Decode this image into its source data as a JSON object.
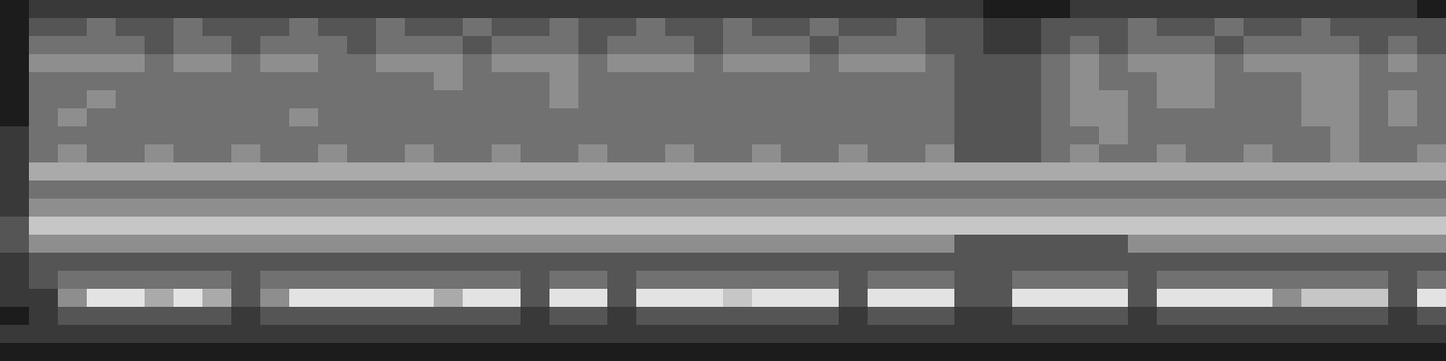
{
  "chart_data": {
    "type": "heatmap",
    "tick_labels": false,
    "zlim": [
      0,
      9
    ],
    "cells": [
      [
        1,
        2,
        2,
        2,
        2,
        2,
        2,
        2,
        2,
        2,
        2,
        2,
        2,
        2,
        2,
        2,
        2,
        2,
        2,
        2,
        2,
        2,
        2,
        2,
        2,
        2,
        2,
        2,
        2,
        2,
        2,
        2,
        2,
        2,
        1,
        1,
        1,
        2,
        2,
        2,
        2,
        2,
        2,
        2,
        2,
        2,
        2,
        2,
        2,
        1
      ],
      [
        1,
        3,
        3,
        4,
        3,
        3,
        4,
        3,
        3,
        3,
        4,
        3,
        3,
        4,
        3,
        3,
        4,
        3,
        3,
        4,
        3,
        3,
        4,
        3,
        3,
        4,
        3,
        3,
        4,
        3,
        3,
        4,
        3,
        3,
        2,
        2,
        3,
        3,
        3,
        4,
        3,
        3,
        4,
        3,
        3,
        4,
        3,
        3,
        3,
        3
      ],
      [
        1,
        4,
        4,
        4,
        4,
        3,
        4,
        4,
        3,
        4,
        4,
        4,
        3,
        4,
        4,
        4,
        3,
        4,
        4,
        4,
        3,
        4,
        4,
        4,
        3,
        4,
        4,
        4,
        3,
        4,
        4,
        4,
        3,
        3,
        2,
        2,
        3,
        4,
        3,
        4,
        4,
        4,
        3,
        4,
        4,
        4,
        4,
        3,
        4,
        3
      ],
      [
        1,
        5,
        5,
        5,
        5,
        4,
        5,
        5,
        4,
        5,
        5,
        4,
        4,
        5,
        5,
        5,
        4,
        5,
        5,
        5,
        4,
        5,
        5,
        5,
        4,
        5,
        5,
        5,
        4,
        5,
        5,
        5,
        4,
        3,
        3,
        3,
        4,
        5,
        4,
        5,
        5,
        5,
        4,
        5,
        5,
        5,
        5,
        4,
        5,
        4
      ],
      [
        1,
        4,
        4,
        4,
        4,
        4,
        4,
        4,
        4,
        4,
        4,
        4,
        4,
        4,
        4,
        5,
        4,
        4,
        4,
        5,
        4,
        4,
        4,
        4,
        4,
        4,
        4,
        4,
        4,
        4,
        4,
        4,
        4,
        3,
        3,
        3,
        4,
        5,
        4,
        4,
        5,
        5,
        4,
        4,
        4,
        5,
        5,
        4,
        4,
        4
      ],
      [
        1,
        4,
        4,
        5,
        4,
        4,
        4,
        4,
        4,
        4,
        4,
        4,
        4,
        4,
        4,
        4,
        4,
        4,
        4,
        5,
        4,
        4,
        4,
        4,
        4,
        4,
        4,
        4,
        4,
        4,
        4,
        4,
        4,
        3,
        3,
        3,
        4,
        5,
        5,
        4,
        5,
        5,
        4,
        4,
        4,
        5,
        5,
        4,
        5,
        4
      ],
      [
        1,
        4,
        5,
        4,
        4,
        4,
        4,
        4,
        4,
        4,
        5,
        4,
        4,
        4,
        4,
        4,
        4,
        4,
        4,
        4,
        4,
        4,
        4,
        4,
        4,
        4,
        4,
        4,
        4,
        4,
        4,
        4,
        4,
        3,
        3,
        3,
        4,
        5,
        5,
        4,
        4,
        4,
        4,
        4,
        4,
        5,
        5,
        4,
        5,
        4
      ],
      [
        2,
        4,
        4,
        4,
        4,
        4,
        4,
        4,
        4,
        4,
        4,
        4,
        4,
        4,
        4,
        4,
        4,
        4,
        4,
        4,
        4,
        4,
        4,
        4,
        4,
        4,
        4,
        4,
        4,
        4,
        4,
        4,
        4,
        3,
        3,
        3,
        4,
        4,
        5,
        4,
        4,
        4,
        4,
        4,
        4,
        4,
        5,
        4,
        4,
        4
      ],
      [
        2,
        4,
        5,
        4,
        4,
        5,
        4,
        4,
        5,
        4,
        4,
        5,
        4,
        4,
        5,
        4,
        4,
        5,
        4,
        4,
        5,
        4,
        4,
        5,
        4,
        4,
        5,
        4,
        4,
        5,
        4,
        4,
        5,
        3,
        3,
        3,
        4,
        5,
        4,
        4,
        5,
        4,
        4,
        5,
        4,
        4,
        5,
        4,
        4,
        5
      ],
      [
        2,
        6,
        6,
        6,
        6,
        6,
        6,
        6,
        6,
        6,
        6,
        6,
        6,
        6,
        6,
        6,
        6,
        6,
        6,
        6,
        6,
        6,
        6,
        6,
        6,
        6,
        6,
        6,
        6,
        6,
        6,
        6,
        6,
        6,
        6,
        6,
        6,
        6,
        6,
        6,
        6,
        6,
        6,
        6,
        6,
        6,
        6,
        6,
        6,
        6
      ],
      [
        2,
        4,
        4,
        4,
        4,
        4,
        4,
        4,
        4,
        4,
        4,
        4,
        4,
        4,
        4,
        4,
        4,
        4,
        4,
        4,
        4,
        4,
        4,
        4,
        4,
        4,
        4,
        4,
        4,
        4,
        4,
        4,
        4,
        4,
        4,
        4,
        4,
        4,
        4,
        4,
        4,
        4,
        4,
        4,
        4,
        4,
        4,
        4,
        4,
        4
      ],
      [
        2,
        5,
        5,
        5,
        5,
        5,
        5,
        5,
        5,
        5,
        5,
        5,
        5,
        5,
        5,
        5,
        5,
        5,
        5,
        5,
        5,
        5,
        5,
        5,
        5,
        5,
        5,
        5,
        5,
        5,
        5,
        5,
        5,
        5,
        5,
        5,
        5,
        5,
        5,
        5,
        5,
        5,
        5,
        5,
        5,
        5,
        5,
        5,
        5,
        5
      ],
      [
        3,
        7,
        7,
        7,
        7,
        7,
        7,
        7,
        7,
        7,
        7,
        7,
        7,
        7,
        7,
        7,
        7,
        7,
        7,
        7,
        7,
        7,
        7,
        7,
        7,
        7,
        7,
        7,
        7,
        7,
        7,
        7,
        7,
        7,
        7,
        7,
        7,
        7,
        7,
        7,
        7,
        7,
        7,
        7,
        7,
        7,
        7,
        7,
        7,
        7
      ],
      [
        3,
        5,
        5,
        5,
        5,
        5,
        5,
        5,
        5,
        5,
        5,
        5,
        5,
        5,
        5,
        5,
        5,
        5,
        5,
        5,
        5,
        5,
        5,
        5,
        5,
        5,
        5,
        5,
        5,
        5,
        5,
        5,
        5,
        3,
        3,
        3,
        3,
        3,
        3,
        5,
        5,
        5,
        5,
        5,
        5,
        5,
        5,
        5,
        5,
        5
      ],
      [
        2,
        3,
        3,
        3,
        3,
        3,
        3,
        3,
        3,
        3,
        3,
        3,
        3,
        3,
        3,
        3,
        3,
        3,
        3,
        3,
        3,
        3,
        3,
        3,
        3,
        3,
        3,
        3,
        3,
        3,
        3,
        3,
        3,
        3,
        3,
        3,
        3,
        3,
        3,
        3,
        3,
        3,
        3,
        3,
        3,
        3,
        3,
        3,
        3,
        3
      ],
      [
        2,
        3,
        4,
        4,
        4,
        4,
        4,
        4,
        3,
        4,
        4,
        4,
        4,
        4,
        4,
        4,
        4,
        4,
        3,
        4,
        4,
        3,
        4,
        4,
        4,
        4,
        4,
        4,
        4,
        3,
        4,
        4,
        4,
        3,
        3,
        4,
        4,
        4,
        4,
        3,
        4,
        4,
        4,
        4,
        4,
        4,
        4,
        4,
        3,
        4
      ],
      [
        2,
        2,
        5,
        8,
        8,
        6,
        8,
        6,
        3,
        5,
        8,
        8,
        8,
        8,
        8,
        6,
        8,
        8,
        3,
        8,
        8,
        3,
        8,
        8,
        8,
        7,
        8,
        8,
        8,
        3,
        8,
        8,
        8,
        3,
        3,
        8,
        8,
        8,
        8,
        3,
        8,
        8,
        8,
        8,
        5,
        7,
        7,
        7,
        3,
        8
      ],
      [
        1,
        2,
        3,
        3,
        3,
        3,
        3,
        3,
        2,
        3,
        3,
        3,
        3,
        3,
        3,
        3,
        3,
        3,
        2,
        3,
        3,
        2,
        3,
        3,
        3,
        3,
        3,
        3,
        3,
        2,
        3,
        3,
        3,
        2,
        2,
        3,
        3,
        3,
        3,
        2,
        3,
        3,
        3,
        3,
        3,
        3,
        3,
        3,
        2,
        3
      ],
      [
        2,
        2,
        2,
        2,
        2,
        2,
        2,
        2,
        2,
        2,
        2,
        2,
        2,
        2,
        2,
        2,
        2,
        2,
        2,
        2,
        2,
        2,
        2,
        2,
        2,
        2,
        2,
        2,
        2,
        2,
        2,
        2,
        2,
        2,
        2,
        2,
        2,
        2,
        2,
        2,
        2,
        2,
        2,
        2,
        2,
        2,
        2,
        2,
        2,
        2
      ],
      [
        1,
        1,
        1,
        1,
        1,
        1,
        1,
        1,
        1,
        1,
        1,
        1,
        1,
        1,
        1,
        1,
        1,
        1,
        1,
        1,
        1,
        1,
        1,
        1,
        1,
        1,
        1,
        1,
        1,
        1,
        1,
        1,
        1,
        1,
        1,
        1,
        1,
        1,
        1,
        1,
        1,
        1,
        1,
        1,
        1,
        1,
        1,
        1,
        1,
        1
      ]
    ]
  }
}
